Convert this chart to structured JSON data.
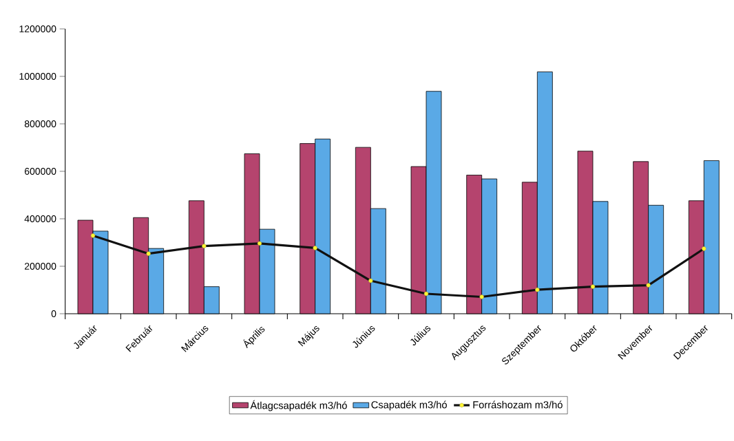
{
  "chart_data": {
    "type": "bar",
    "categories": [
      "Január",
      "Február",
      "Március",
      "Április",
      "Május",
      "Június",
      "Július",
      "Augusztus",
      "Szeptember",
      "Október",
      "November",
      "December"
    ],
    "series": [
      {
        "name": "Átlagcsapadék m3/hó",
        "color": "#b5446e",
        "values": [
          394000,
          405000,
          476000,
          674000,
          717000,
          701000,
          620000,
          584000,
          554000,
          685000,
          641000,
          476000
        ]
      },
      {
        "name": "Csapadék m3/hó",
        "color": "#5aa9e6",
        "values": [
          348000,
          275000,
          114000,
          356000,
          736000,
          443000,
          937000,
          568000,
          1019000,
          473000,
          457000,
          645000
        ]
      },
      {
        "name": "Forráshozam m3/hó",
        "type": "line",
        "color": "#111111",
        "marker": "circle",
        "values": [
          329000,
          253000,
          285000,
          296000,
          277000,
          139000,
          84000,
          71000,
          101000,
          114000,
          120000,
          274000
        ]
      }
    ],
    "ylim": [
      0,
      1200000
    ],
    "yticks": [
      0,
      200000,
      400000,
      600000,
      800000,
      1000000,
      1200000
    ],
    "legend": "bottom"
  }
}
